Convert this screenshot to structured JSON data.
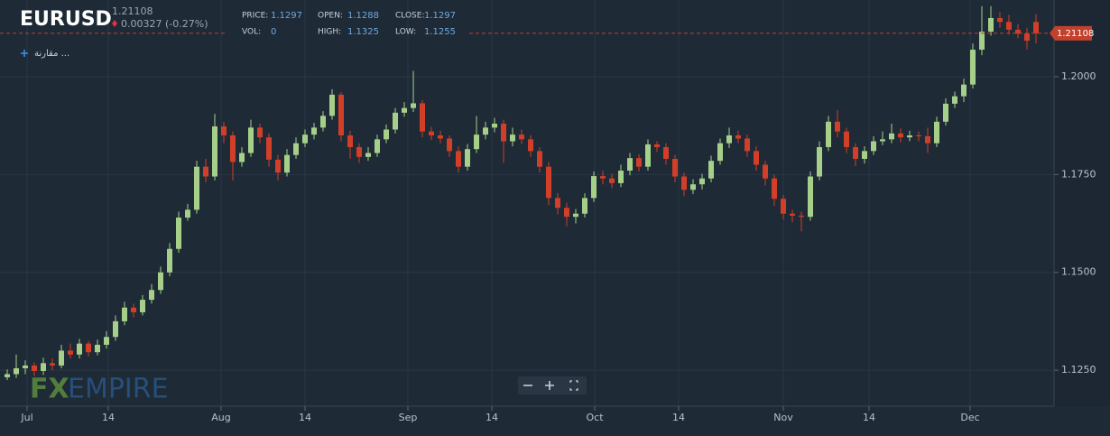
{
  "chart_data": {
    "type": "candlestick",
    "title": "EURUSD",
    "last_price": "1.21108",
    "change": "0.00327 (-0.27%)",
    "stats": [
      {
        "label": "PRICE:",
        "value": "1.1297"
      },
      {
        "label": "OPEN:",
        "value": "1.1288"
      },
      {
        "label": "CLOSE:",
        "value": "1.1297"
      },
      {
        "label": "VOL:",
        "value": "0"
      },
      {
        "label": "HIGH:",
        "value": "1.1325"
      },
      {
        "label": "LOW:",
        "value": "1.1255"
      }
    ],
    "compare_button": "مقارنة ...",
    "watermark": [
      "FX",
      "EMPIRE"
    ],
    "up_color": "#a6d08a",
    "down_color": "#d23f28",
    "grid": true,
    "ylim": [
      1.1158,
      1.2196
    ],
    "yticks": [
      {
        "value": 1.125,
        "label": "1.1250"
      },
      {
        "value": 1.15,
        "label": "1.1500"
      },
      {
        "value": 1.175,
        "label": "1.1750"
      },
      {
        "value": 1.2,
        "label": "1.2000"
      }
    ],
    "xticks": [
      {
        "value": 2.2,
        "label": "Jul"
      },
      {
        "value": 11.2,
        "label": "14"
      },
      {
        "value": 23.7,
        "label": "Aug"
      },
      {
        "value": 33,
        "label": "14"
      },
      {
        "value": 44.4,
        "label": "Sep"
      },
      {
        "value": 53.7,
        "label": "14"
      },
      {
        "value": 65.1,
        "label": "Oct"
      },
      {
        "value": 74.4,
        "label": "14"
      },
      {
        "value": 86,
        "label": "Nov"
      },
      {
        "value": 95.5,
        "label": "14"
      },
      {
        "value": 106.7,
        "label": "Dec"
      }
    ],
    "open": [
      1.1232,
      1.124,
      1.1255,
      1.1262,
      1.1248,
      1.1268,
      1.1262,
      1.13,
      1.129,
      1.1318,
      1.1296,
      1.1315,
      1.1335,
      1.1375,
      1.141,
      1.1398,
      1.143,
      1.1455,
      1.15,
      1.156,
      1.164,
      1.166,
      1.177,
      1.1745,
      1.1873,
      1.185,
      1.1782,
      1.1805,
      1.187,
      1.1845,
      1.1788,
      1.1755,
      1.18,
      1.183,
      1.1852,
      1.187,
      1.19,
      1.1954,
      1.185,
      1.182,
      1.1795,
      1.1805,
      1.184,
      1.1865,
      1.1908,
      1.192,
      1.1932,
      1.186,
      1.185,
      1.1842,
      1.181,
      1.177,
      1.1815,
      1.1852,
      1.187,
      1.188,
      1.1835,
      1.1852,
      1.184,
      1.181,
      1.177,
      1.169,
      1.1665,
      1.1642,
      1.165,
      1.169,
      1.1746,
      1.174,
      1.1728,
      1.176,
      1.1792,
      1.177,
      1.1827,
      1.182,
      1.179,
      1.1745,
      1.1711,
      1.1725,
      1.174,
      1.1785,
      1.183,
      1.185,
      1.1842,
      1.181,
      1.1775,
      1.174,
      1.1688,
      1.165,
      1.1645,
      1.1642,
      1.1745,
      1.182,
      1.1885,
      1.186,
      1.182,
      1.179,
      1.181,
      1.1835,
      1.184,
      1.1855,
      1.1845,
      1.185,
      1.1848,
      1.183,
      1.1885,
      1.1931,
      1.195,
      1.198,
      1.2069,
      1.2115,
      1.215,
      1.214,
      1.212,
      1.211,
      1.214
    ],
    "high": [
      1.1252,
      1.129,
      1.1275,
      1.127,
      1.1282,
      1.128,
      1.1315,
      1.1318,
      1.133,
      1.1325,
      1.1328,
      1.135,
      1.139,
      1.1425,
      1.142,
      1.1442,
      1.147,
      1.1515,
      1.1575,
      1.1655,
      1.1675,
      1.1785,
      1.179,
      1.1905,
      1.1885,
      1.186,
      1.182,
      1.189,
      1.188,
      1.1855,
      1.18,
      1.1815,
      1.1845,
      1.1865,
      1.1882,
      1.1912,
      1.1968,
      1.196,
      1.1862,
      1.183,
      1.182,
      1.1852,
      1.1878,
      1.192,
      1.1935,
      1.2015,
      1.194,
      1.1872,
      1.1862,
      1.185,
      1.1822,
      1.1828,
      1.19,
      1.1885,
      1.1895,
      1.189,
      1.187,
      1.1865,
      1.185,
      1.182,
      1.1782,
      1.1702,
      1.1678,
      1.1662,
      1.1702,
      1.1758,
      1.176,
      1.1752,
      1.1775,
      1.1805,
      1.1802,
      1.184,
      1.1835,
      1.183,
      1.18,
      1.1755,
      1.1738,
      1.1752,
      1.1798,
      1.1842,
      1.187,
      1.1862,
      1.1852,
      1.1822,
      1.1785,
      1.175,
      1.1698,
      1.166,
      1.1655,
      1.1758,
      1.1835,
      1.19,
      1.1915,
      1.187,
      1.183,
      1.1822,
      1.1848,
      1.186,
      1.188,
      1.1868,
      1.1862,
      1.186,
      1.187,
      1.1898,
      1.1945,
      1.1962,
      1.1995,
      1.2085,
      1.218,
      1.218,
      1.2165,
      1.2158,
      1.2135,
      1.2125,
      1.216
    ],
    "low": [
      1.1225,
      1.123,
      1.124,
      1.1235,
      1.1238,
      1.125,
      1.1255,
      1.128,
      1.128,
      1.1285,
      1.1288,
      1.1305,
      1.1325,
      1.1365,
      1.1385,
      1.139,
      1.142,
      1.1445,
      1.149,
      1.155,
      1.1632,
      1.165,
      1.173,
      1.1735,
      1.183,
      1.1735,
      1.177,
      1.1795,
      1.183,
      1.177,
      1.1735,
      1.1745,
      1.179,
      1.182,
      1.184,
      1.186,
      1.189,
      1.1835,
      1.179,
      1.178,
      1.1785,
      1.1795,
      1.183,
      1.1855,
      1.1898,
      1.191,
      1.1845,
      1.1838,
      1.183,
      1.1795,
      1.1755,
      1.176,
      1.1805,
      1.184,
      1.1858,
      1.178,
      1.1822,
      1.1828,
      1.1795,
      1.1755,
      1.1672,
      1.1648,
      1.1618,
      1.1625,
      1.164,
      1.168,
      1.1725,
      1.1715,
      1.1718,
      1.1748,
      1.1758,
      1.176,
      1.1808,
      1.1775,
      1.173,
      1.1695,
      1.17,
      1.1712,
      1.173,
      1.1775,
      1.1818,
      1.183,
      1.1795,
      1.176,
      1.1722,
      1.167,
      1.1635,
      1.1628,
      1.1605,
      1.1632,
      1.1735,
      1.181,
      1.1845,
      1.1805,
      1.1772,
      1.1778,
      1.18,
      1.1825,
      1.183,
      1.1832,
      1.1835,
      1.1835,
      1.1805,
      1.182,
      1.1875,
      1.192,
      1.1935,
      1.197,
      1.2055,
      1.2105,
      1.2125,
      1.2108,
      1.2098,
      1.207,
      1.2085
    ],
    "close": [
      1.124,
      1.1255,
      1.1262,
      1.1248,
      1.1268,
      1.1262,
      1.13,
      1.129,
      1.1318,
      1.1296,
      1.1315,
      1.1335,
      1.1375,
      1.141,
      1.1398,
      1.143,
      1.1455,
      1.15,
      1.156,
      1.164,
      1.166,
      1.177,
      1.1745,
      1.1873,
      1.185,
      1.1782,
      1.1805,
      1.187,
      1.1845,
      1.1788,
      1.1755,
      1.18,
      1.183,
      1.1852,
      1.187,
      1.19,
      1.1954,
      1.185,
      1.182,
      1.1795,
      1.1805,
      1.184,
      1.1865,
      1.1908,
      1.192,
      1.1932,
      1.186,
      1.185,
      1.1842,
      1.181,
      1.177,
      1.1815,
      1.1852,
      1.187,
      1.188,
      1.1835,
      1.1852,
      1.184,
      1.181,
      1.177,
      1.169,
      1.1665,
      1.1642,
      1.165,
      1.169,
      1.1746,
      1.174,
      1.1728,
      1.176,
      1.1792,
      1.177,
      1.1827,
      1.182,
      1.179,
      1.1745,
      1.1711,
      1.1725,
      1.174,
      1.1785,
      1.183,
      1.185,
      1.1842,
      1.181,
      1.1775,
      1.174,
      1.1688,
      1.165,
      1.1645,
      1.1642,
      1.1745,
      1.182,
      1.1885,
      1.186,
      1.182,
      1.179,
      1.181,
      1.1835,
      1.184,
      1.1855,
      1.1845,
      1.185,
      1.1848,
      1.183,
      1.1885,
      1.1931,
      1.195,
      1.198,
      1.2069,
      1.2115,
      1.215,
      1.214,
      1.212,
      1.211,
      1.2092,
      1.21108
    ]
  }
}
